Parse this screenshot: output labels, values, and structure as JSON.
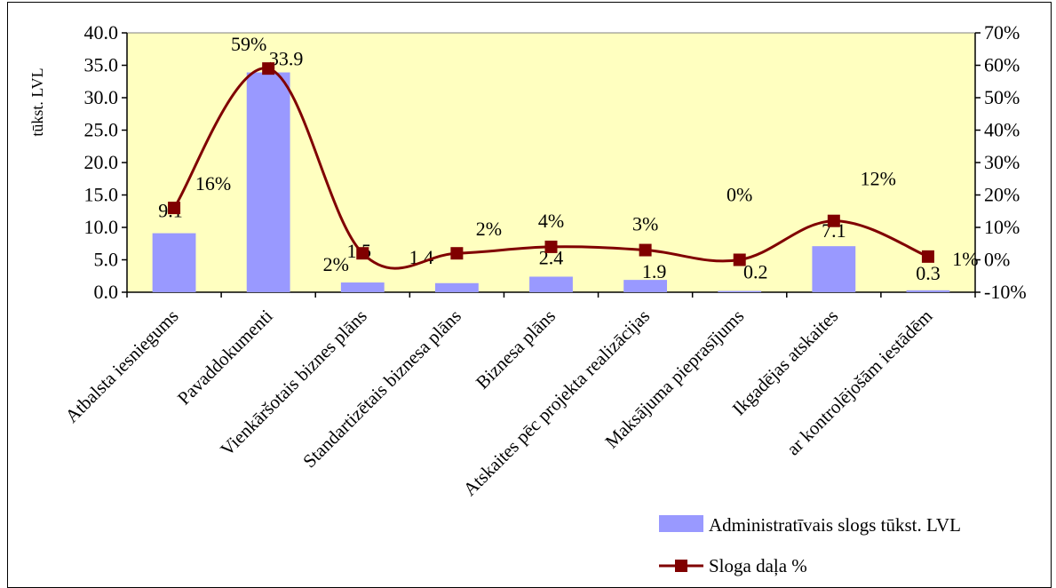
{
  "chart_data": {
    "type": "bar+line",
    "ylabel": "tūkst. LVL",
    "categories": [
      "Atbalsta iesniegums",
      "Pavaddokumenti",
      "Vienkāršotais biznes plāns",
      "Standartizētais biznesa plāns",
      "Biznesa plāns",
      "Atskaites pēc projekta realizācijas",
      "Maksājuma pieprasījums",
      "Ikgadējas atskaites",
      "ar kontrolējošām iestādēm"
    ],
    "left_axis": {
      "ylim": [
        0,
        40
      ],
      "ticks": [
        "0.0",
        "5.0",
        "10.0",
        "15.0",
        "20.0",
        "25.0",
        "30.0",
        "35.0",
        "40.0"
      ]
    },
    "right_axis": {
      "ylim": [
        -10,
        70
      ],
      "ticks": [
        "-10%",
        "0%",
        "10%",
        "20%",
        "30%",
        "40%",
        "50%",
        "60%",
        "70%"
      ]
    },
    "series": [
      {
        "name": "Administratīvais slogs tūkst. LVL",
        "type": "bar",
        "color": "#9999ff",
        "values": [
          9.1,
          33.9,
          1.5,
          1.4,
          2.4,
          1.9,
          0.2,
          7.1,
          0.3
        ],
        "labels": [
          "9.1",
          "33.9",
          "1.5",
          "1.4",
          "2.4",
          "1.9",
          "0.2",
          "7.1",
          "0.3"
        ]
      },
      {
        "name": "Sloga daļa %",
        "type": "line",
        "color": "#800000",
        "values": [
          16,
          59,
          2,
          2,
          4,
          3,
          0,
          12,
          1
        ],
        "labels": [
          "16%",
          "59%",
          "2%",
          "2%",
          "4%",
          "3%",
          "0%",
          "12%",
          "1%"
        ]
      }
    ],
    "plot_background": "#ffffc0",
    "legend_position": "bottom-right",
    "grid": false
  }
}
